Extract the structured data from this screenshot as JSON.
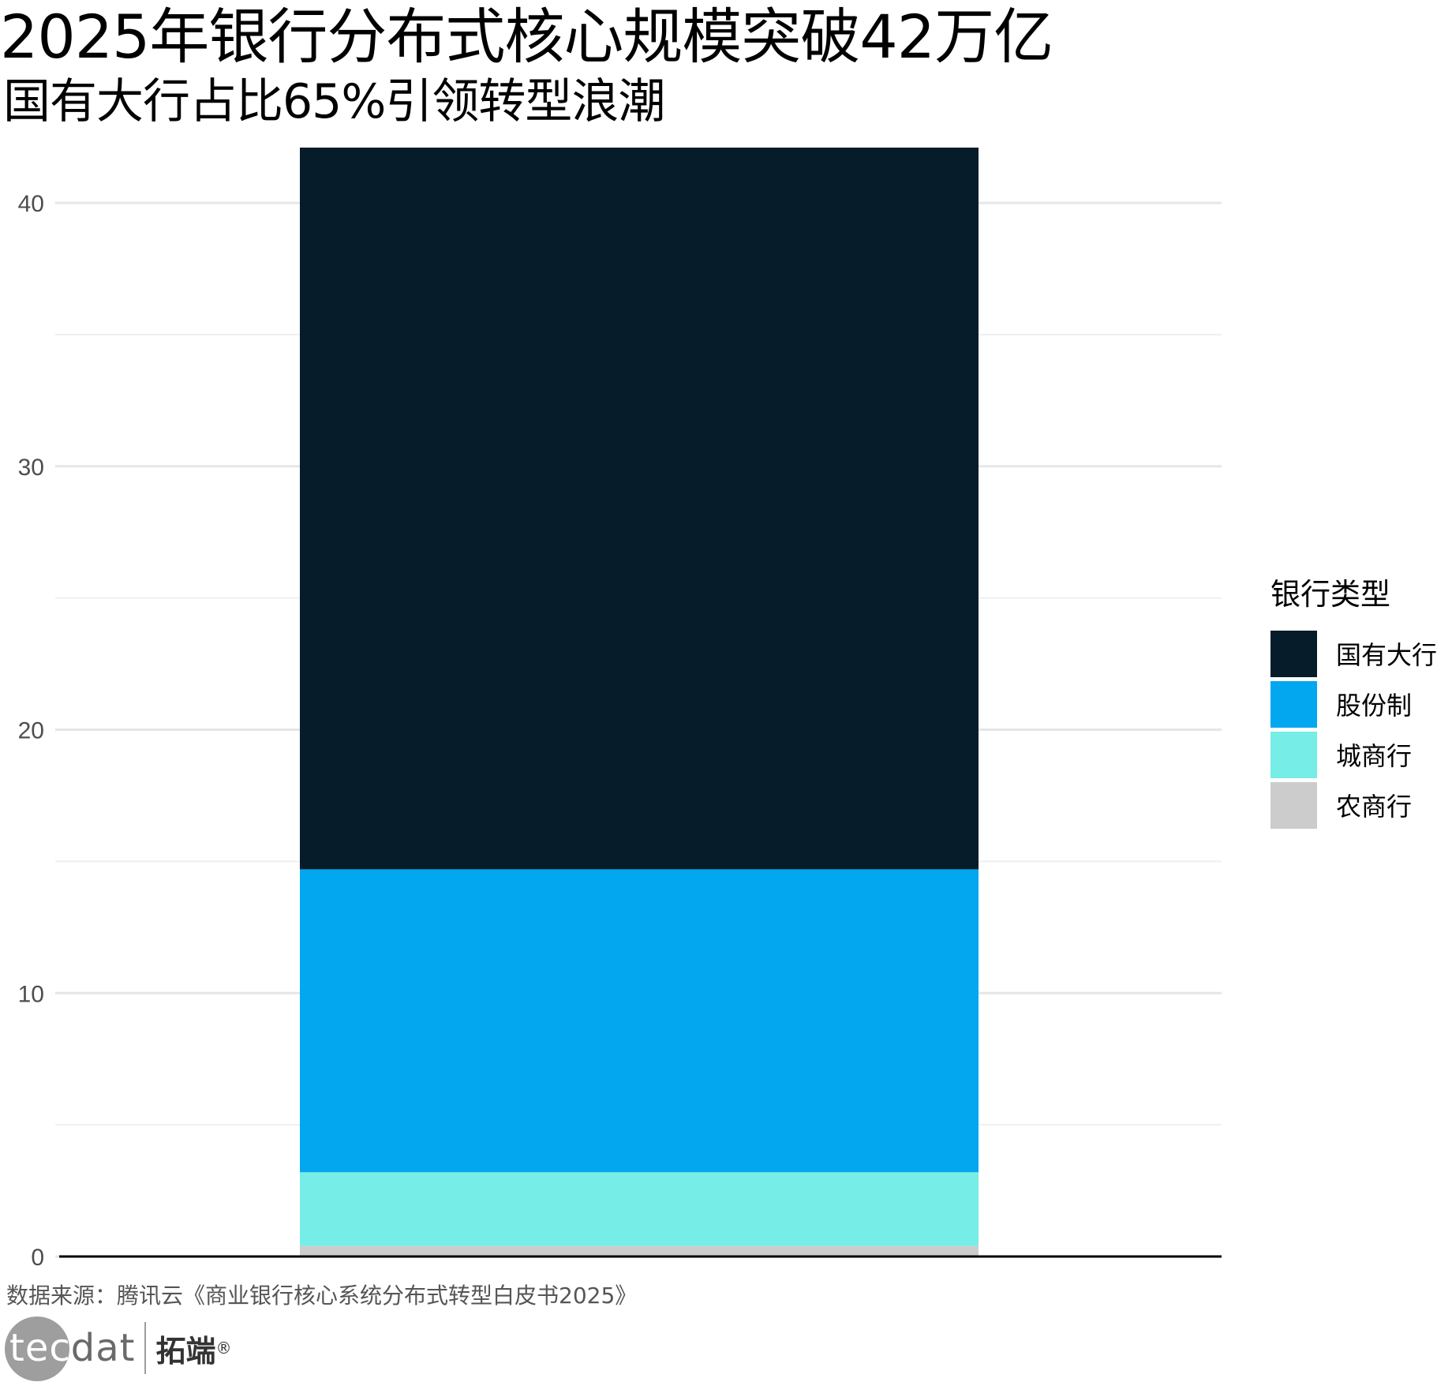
{
  "title": "2025年银行分布式核心规模突破42万亿",
  "subtitle": "国有大行占比65%引领转型浪潮",
  "caption": "数据来源：腾讯云《商业银行核心系统分布式转型白皮书2025》",
  "logo": {
    "text_a": "tec",
    "text_b": "dat",
    "cn": "拓端",
    "reg": "®"
  },
  "chart_data": {
    "type": "bar",
    "stacked": true,
    "categories": [
      ""
    ],
    "series": [
      {
        "name": "农商行",
        "values": [
          0.4
        ],
        "color": "#cccccc"
      },
      {
        "name": "城商行",
        "values": [
          2.8
        ],
        "color": "#76ede6"
      },
      {
        "name": "股份制",
        "values": [
          11.5
        ],
        "color": "#02a7f0"
      },
      {
        "name": "国有大行",
        "values": [
          27.4
        ],
        "color": "#071c2a"
      }
    ],
    "ylim": [
      0,
      42.1
    ],
    "yticks": [
      0,
      10,
      20,
      30,
      40
    ],
    "xlabel": "",
    "ylabel": "",
    "grid": true,
    "legend": {
      "title": "银行类型",
      "position": "right",
      "order": [
        "国有大行",
        "股份制",
        "城商行",
        "农商行"
      ]
    }
  }
}
